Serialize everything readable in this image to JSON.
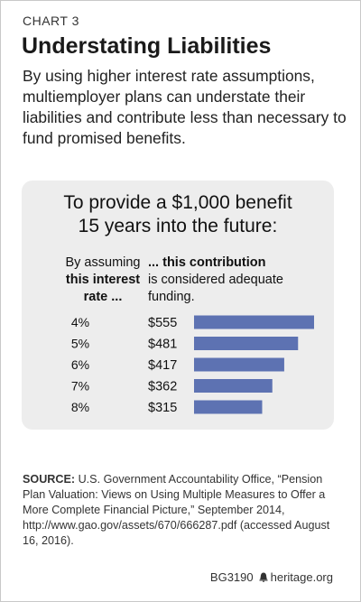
{
  "chart_label": "CHART 3",
  "title": "Understating Liabilities",
  "subtitle": "By using higher interest rate assumptions, multiemployer plans can understate their liabilities and contribute less than necessary to fund promised benefits.",
  "panel": {
    "heading_line1": "To provide a $1,000 benefit",
    "heading_line2": "15 years into the future:",
    "left_header_line1": "By assuming",
    "left_header_line2": "this interest",
    "left_header_line3": "rate ...",
    "right_header_line1": "... this contribution",
    "right_header_line2": "is considered adequate",
    "right_header_line3": "funding."
  },
  "chart_data": {
    "type": "bar",
    "orientation": "horizontal",
    "categories": [
      "4%",
      "5%",
      "6%",
      "7%",
      "8%"
    ],
    "values": [
      555,
      481,
      417,
      362,
      315
    ],
    "value_labels": [
      "$555",
      "$481",
      "$417",
      "$362",
      "$315"
    ],
    "bar_color": "#5d72b2",
    "grid": false
  },
  "source": {
    "label": "SOURCE:",
    "text": " U.S. Government Accountability Office, “Pension Plan Valuation: Views on Using Multiple Measures to Offer a More Complete Financial Picture,” September 2014, http://www.gao.gov/assets/670/666287.pdf (accessed August 16, 2016)."
  },
  "footer": {
    "code": "BG3190",
    "site": "heritage.org"
  }
}
